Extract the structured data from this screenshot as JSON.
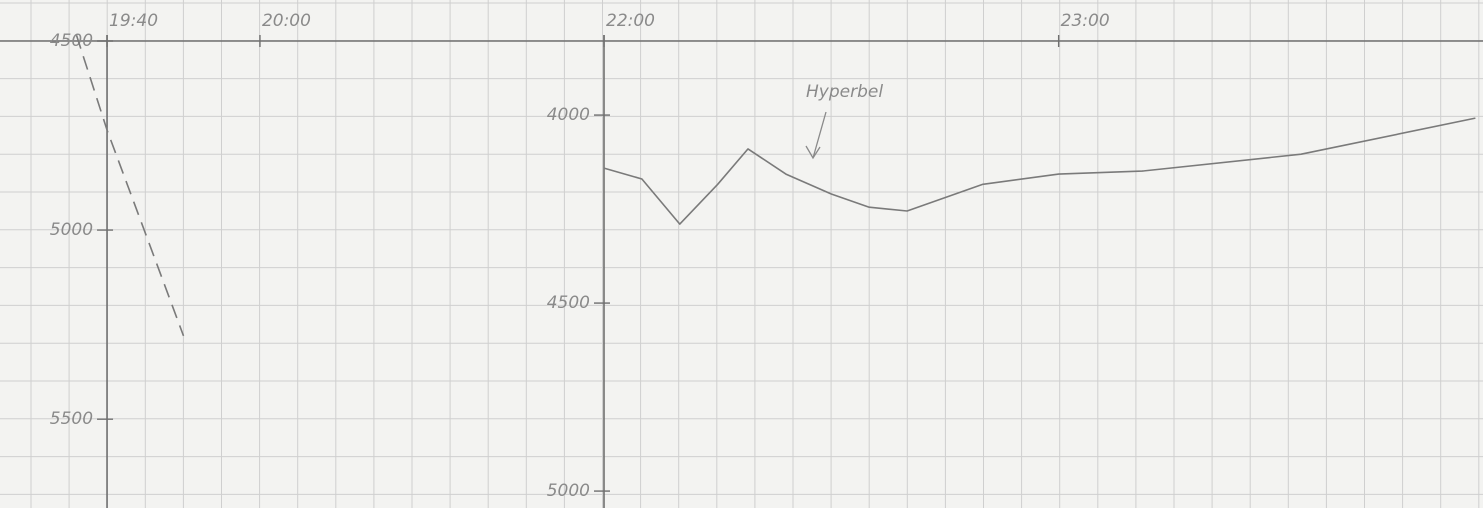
{
  "chart_data": [
    {
      "type": "line",
      "x": [
        "19:36",
        "19:40",
        "19:50"
      ],
      "series": [
        {
          "color": "#7a7a7a",
          "dash": true,
          "values": [
            4485,
            4735,
            5280
          ]
        }
      ],
      "xlim": [
        "19:26",
        "20:45"
      ],
      "xticks": [
        "19:40",
        "20:00"
      ],
      "ylim": [
        4500,
        5735
      ],
      "yticks": [
        4500,
        5000,
        5500
      ],
      "invert_y": true
    },
    {
      "type": "line",
      "annotation": "Hyperbel",
      "x": [
        "22:00",
        "22:05",
        "22:10",
        "22:15",
        "22:19",
        "22:24",
        "22:30",
        "22:35",
        "22:40",
        "22:50",
        "23:00",
        "23:11",
        "23:32",
        "23:55"
      ],
      "series": [
        {
          "color": "#7a7a7a",
          "dash": false,
          "values": [
            4141,
            4170,
            4290,
            4184,
            4090,
            4157,
            4210,
            4245,
            4255,
            4184,
            4157,
            4149,
            4104,
            4008
          ]
        }
      ],
      "xlim": [
        "22:00",
        "23:56"
      ],
      "xticks": [
        "22:00",
        "23:00"
      ],
      "ylim": [
        3803,
        5045
      ],
      "yticks": [
        4000,
        4500,
        5000
      ],
      "invert_y": true
    }
  ]
}
